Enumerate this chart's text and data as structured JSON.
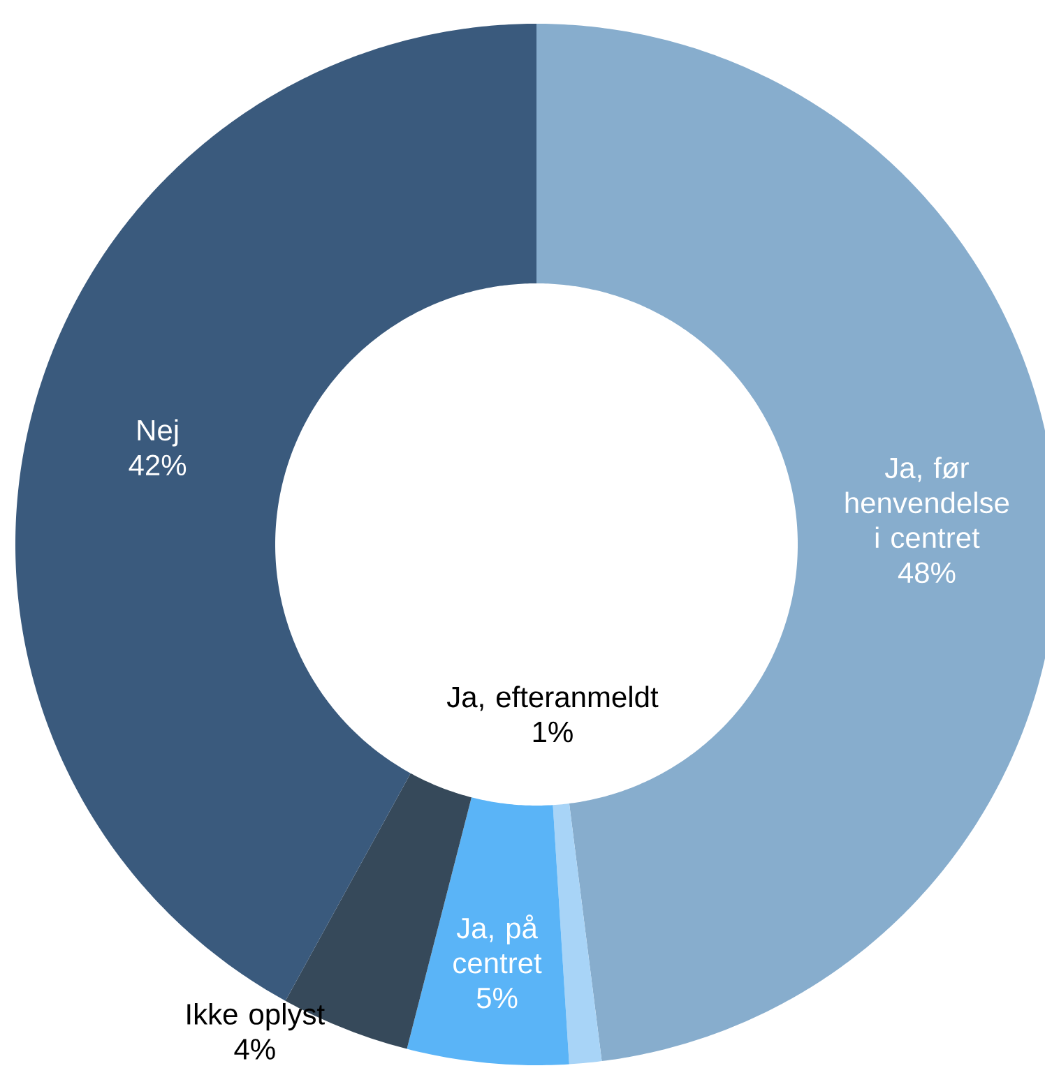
{
  "chart_data": {
    "type": "donut",
    "categories": [
      "Ja, før henvendelse i centret",
      "Ja, efteranmeldt",
      "Ja, på centret",
      "Ikke oplyst",
      "Nej"
    ],
    "values": [
      48,
      1,
      5,
      4,
      42
    ],
    "value_labels": [
      "48%",
      "1%",
      "5%",
      "4%",
      "42%"
    ],
    "colors": [
      "#87adcd",
      "#a8d4f7",
      "#5ab4f7",
      "#36495a",
      "#3a5a7d"
    ]
  }
}
